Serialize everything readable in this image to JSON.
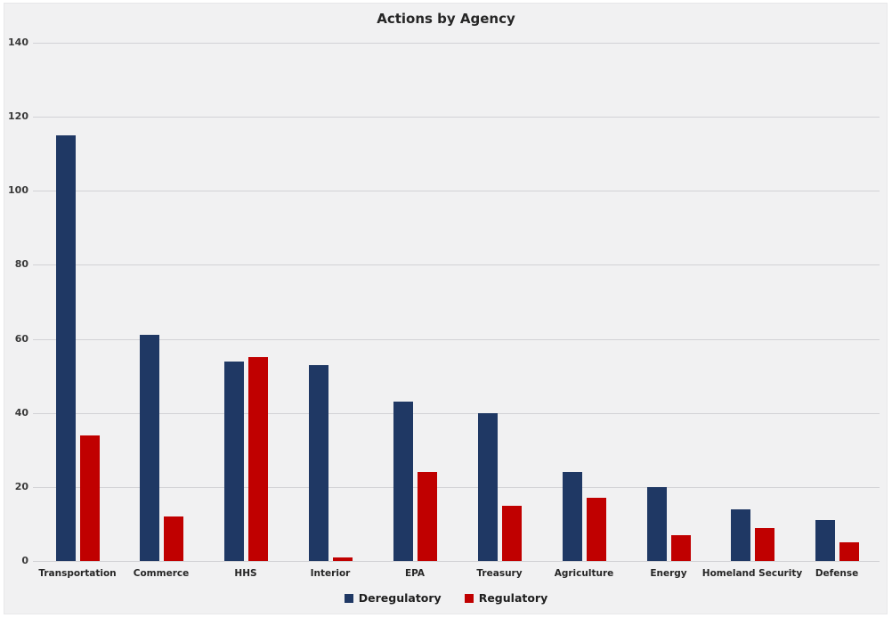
{
  "window": {
    "background_color": "#ffffff",
    "panel_color": "#f1f1f2"
  },
  "chart_data": {
    "type": "bar",
    "title": "Actions by Agency",
    "categories": [
      "Transportation",
      "Commerce",
      "HHS",
      "Interior",
      "EPA",
      "Treasury",
      "Agriculture",
      "Energy",
      "Homeland Security",
      "Defense"
    ],
    "series": [
      {
        "name": "Deregulatory",
        "color": "#1f3864",
        "values": [
          115,
          61,
          54,
          53,
          43,
          40,
          24,
          20,
          14,
          11
        ]
      },
      {
        "name": "Regulatory",
        "color": "#c00000",
        "values": [
          34,
          12,
          55,
          1,
          24,
          15,
          17,
          7,
          9,
          5
        ]
      }
    ],
    "xlabel": "",
    "ylabel": "",
    "ylim": [
      0,
      140
    ],
    "yticks": [
      0,
      20,
      40,
      60,
      80,
      100,
      120,
      140
    ],
    "grid": true,
    "gridline_color": "#d2d2d6",
    "text_color": "#262626",
    "legend_position": "bottom"
  }
}
